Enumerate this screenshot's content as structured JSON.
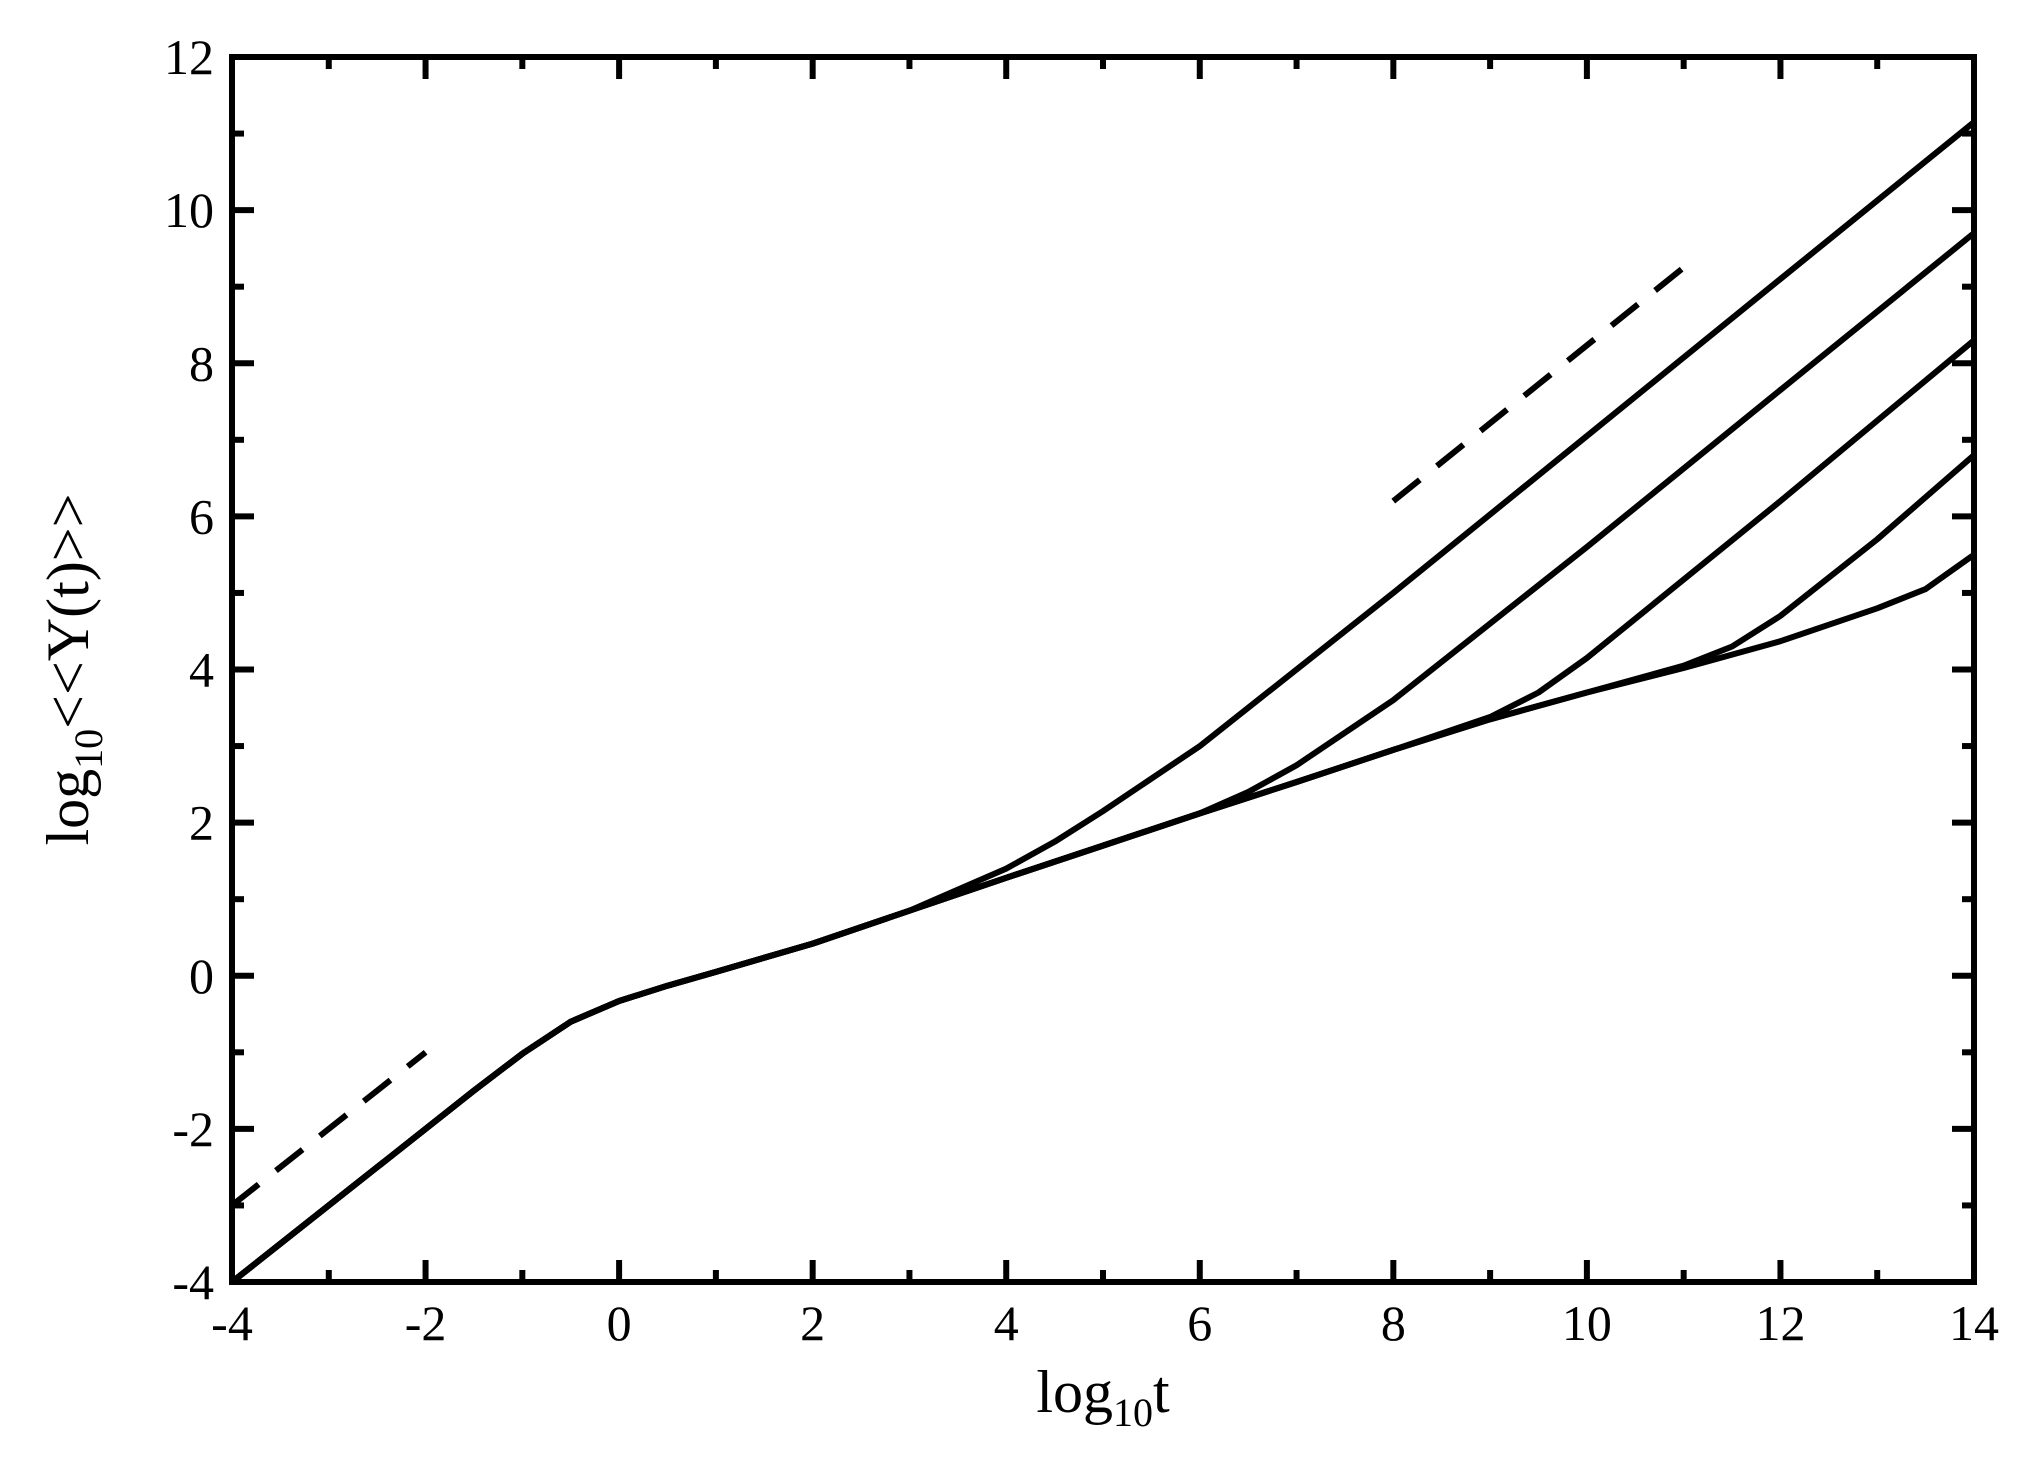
{
  "chart_data": {
    "type": "line",
    "xlabel": {
      "main": "log",
      "sub": "10",
      "var": "t"
    },
    "ylabel": {
      "main": "log",
      "sub": "10",
      "var": "<<Y(t)>>"
    },
    "xlim": [
      -4,
      14
    ],
    "ylim": [
      -4,
      12
    ],
    "xticks": [
      "-4",
      "-2",
      "0",
      "2",
      "4",
      "6",
      "8",
      "10",
      "12",
      "14"
    ],
    "yticks": [
      "-4",
      "-2",
      "0",
      "2",
      "4",
      "6",
      "8",
      "10",
      "12"
    ],
    "grid": false,
    "legend": "none",
    "colors": {
      "line": "#000000",
      "background": "#ffffff"
    },
    "series": [
      {
        "style": "solid",
        "points": [
          [
            -4,
            -4
          ],
          [
            -3,
            -3
          ],
          [
            -2,
            -2
          ],
          [
            -1.5,
            -1.5
          ],
          [
            -1,
            -1.02
          ],
          [
            -0.5,
            -0.6
          ],
          [
            0,
            -0.33
          ],
          [
            0.5,
            -0.13
          ],
          [
            1,
            0.05
          ],
          [
            2,
            0.42
          ],
          [
            3,
            0.85
          ],
          [
            4,
            1.4
          ],
          [
            4.5,
            1.75
          ],
          [
            5,
            2.15
          ],
          [
            6,
            3.0
          ],
          [
            8,
            5.0
          ],
          [
            10,
            7.05
          ],
          [
            12,
            9.1
          ],
          [
            14,
            11.15
          ]
        ]
      },
      {
        "style": "solid",
        "points": [
          [
            -4,
            -4
          ],
          [
            -3,
            -3
          ],
          [
            -2,
            -2
          ],
          [
            -1.5,
            -1.5
          ],
          [
            -1,
            -1.02
          ],
          [
            -0.5,
            -0.6
          ],
          [
            0,
            -0.33
          ],
          [
            0.5,
            -0.13
          ],
          [
            1,
            0.05
          ],
          [
            2,
            0.42
          ],
          [
            3,
            0.85
          ],
          [
            4,
            1.28
          ],
          [
            5,
            1.7
          ],
          [
            6,
            2.12
          ],
          [
            6.5,
            2.4
          ],
          [
            7,
            2.75
          ],
          [
            8,
            3.6
          ],
          [
            10,
            5.6
          ],
          [
            12,
            7.65
          ],
          [
            14,
            9.7
          ]
        ]
      },
      {
        "style": "solid",
        "points": [
          [
            -4,
            -4
          ],
          [
            -3,
            -3
          ],
          [
            -2,
            -2
          ],
          [
            -1.5,
            -1.5
          ],
          [
            -1,
            -1.02
          ],
          [
            -0.5,
            -0.6
          ],
          [
            0,
            -0.33
          ],
          [
            0.5,
            -0.13
          ],
          [
            1,
            0.05
          ],
          [
            2,
            0.42
          ],
          [
            3,
            0.85
          ],
          [
            4,
            1.28
          ],
          [
            5,
            1.7
          ],
          [
            6,
            2.12
          ],
          [
            7,
            2.53
          ],
          [
            8,
            2.95
          ],
          [
            9,
            3.38
          ],
          [
            9.5,
            3.7
          ],
          [
            10,
            4.15
          ],
          [
            12,
            6.2
          ],
          [
            14,
            8.3
          ]
        ]
      },
      {
        "style": "solid",
        "points": [
          [
            -4,
            -4
          ],
          [
            -3,
            -3
          ],
          [
            -2,
            -2
          ],
          [
            -1.5,
            -1.5
          ],
          [
            -1,
            -1.02
          ],
          [
            -0.5,
            -0.6
          ],
          [
            0,
            -0.33
          ],
          [
            0.5,
            -0.13
          ],
          [
            1,
            0.05
          ],
          [
            2,
            0.42
          ],
          [
            3,
            0.85
          ],
          [
            4,
            1.28
          ],
          [
            5,
            1.7
          ],
          [
            6,
            2.12
          ],
          [
            7,
            2.53
          ],
          [
            8,
            2.95
          ],
          [
            9,
            3.35
          ],
          [
            10,
            3.7
          ],
          [
            11,
            4.05
          ],
          [
            11.5,
            4.3
          ],
          [
            12,
            4.7
          ],
          [
            13,
            5.7
          ],
          [
            14,
            6.8
          ]
        ]
      },
      {
        "style": "solid",
        "points": [
          [
            -4,
            -4
          ],
          [
            -3,
            -3
          ],
          [
            -2,
            -2
          ],
          [
            -1.5,
            -1.5
          ],
          [
            -1,
            -1.02
          ],
          [
            -0.5,
            -0.6
          ],
          [
            0,
            -0.33
          ],
          [
            0.5,
            -0.13
          ],
          [
            1,
            0.05
          ],
          [
            2,
            0.42
          ],
          [
            3,
            0.85
          ],
          [
            4,
            1.28
          ],
          [
            5,
            1.7
          ],
          [
            6,
            2.12
          ],
          [
            7,
            2.53
          ],
          [
            8,
            2.95
          ],
          [
            9,
            3.35
          ],
          [
            10,
            3.7
          ],
          [
            11,
            4.02
          ],
          [
            12,
            4.37
          ],
          [
            13,
            4.8
          ],
          [
            13.5,
            5.05
          ],
          [
            14,
            5.5
          ]
        ]
      },
      {
        "style": "dashed",
        "points": [
          [
            -4,
            -3
          ],
          [
            -2,
            -1
          ]
        ]
      },
      {
        "style": "dashed",
        "points": [
          [
            8,
            6.2
          ],
          [
            11,
            9.25
          ]
        ]
      }
    ]
  }
}
